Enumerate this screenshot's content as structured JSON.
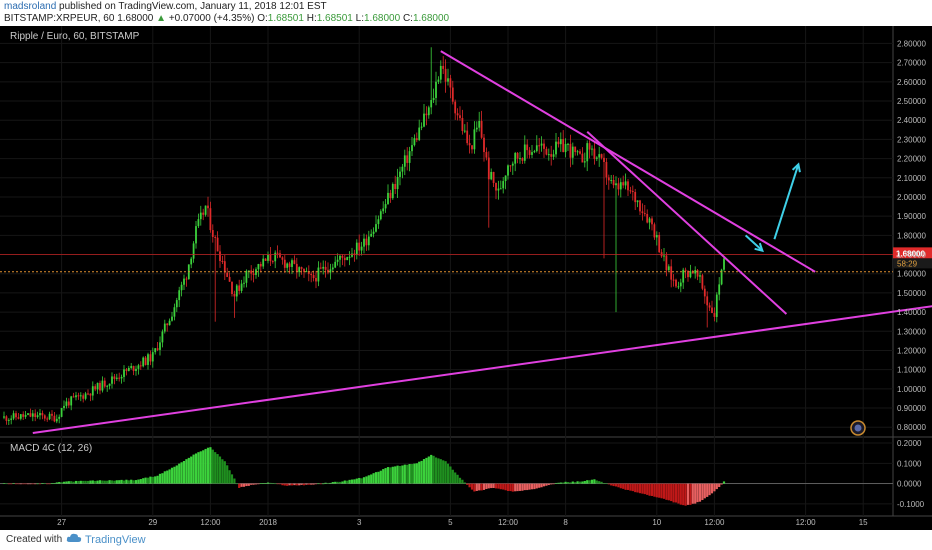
{
  "header": {
    "author": "madsroland",
    "published_text": "published on TradingView.com, January 11, 2018 12:01 EST",
    "symbol": "BITSTAMP:XRPEUR, 60",
    "last": "1.68000",
    "arrow": "▲",
    "change": "+0.07000 (+4.35%)",
    "o_label": "O:",
    "o_value": "1.68501",
    "h_label": "H:",
    "h_value": "1.68501",
    "l_label": "L:",
    "l_value": "1.68000",
    "c_label": "C:",
    "c_value": "1.68000"
  },
  "footer": {
    "created_with": "Created with",
    "brand": "TradingView",
    "logo_icon": "tradingview-cloud-icon"
  },
  "chart_data": {
    "type": "candlestick",
    "legend": "Ripple / Euro, 60, BITSTAMP",
    "y_ticks": [
      "2.80000",
      "2.70000",
      "2.60000",
      "2.50000",
      "2.40000",
      "2.30000",
      "2.20000",
      "2.10000",
      "2.00000",
      "1.90000",
      "1.80000",
      "1.70000",
      "1.60000",
      "1.50000",
      "1.40000",
      "1.30000",
      "1.20000",
      "1.10000",
      "1.00000",
      "0.90000",
      "0.80000"
    ],
    "ylim": [
      0.77,
      2.87
    ],
    "price_label": "1.68000",
    "countdown_label": "58:29",
    "current_price": 1.68,
    "dotted_level": 1.61,
    "red_level": 1.7,
    "x_ticks": [
      "27",
      "29",
      "12:00",
      "2018",
      "3",
      "5",
      "12:00",
      "8",
      "10",
      "12:00",
      "12:00",
      "15"
    ],
    "x_tick_index": [
      24,
      62,
      86,
      110,
      148,
      186,
      210,
      234,
      272,
      296,
      334,
      358
    ],
    "bar_count": 300,
    "anchors": [
      [
        0,
        0.85
      ],
      [
        12,
        0.86
      ],
      [
        22,
        0.85
      ],
      [
        25,
        0.92
      ],
      [
        35,
        0.98
      ],
      [
        45,
        1.05
      ],
      [
        55,
        1.12
      ],
      [
        62,
        1.17
      ],
      [
        70,
        1.4
      ],
      [
        76,
        1.6
      ],
      [
        80,
        1.82
      ],
      [
        84,
        1.95
      ],
      [
        88,
        1.77
      ],
      [
        92,
        1.63
      ],
      [
        96,
        1.49
      ],
      [
        101,
        1.6
      ],
      [
        106,
        1.64
      ],
      [
        112,
        1.69
      ],
      [
        120,
        1.64
      ],
      [
        128,
        1.57
      ],
      [
        134,
        1.63
      ],
      [
        142,
        1.69
      ],
      [
        150,
        1.76
      ],
      [
        158,
        1.94
      ],
      [
        166,
        2.15
      ],
      [
        172,
        2.32
      ],
      [
        178,
        2.48
      ],
      [
        182,
        2.7
      ],
      [
        186,
        2.55
      ],
      [
        190,
        2.4
      ],
      [
        194,
        2.25
      ],
      [
        198,
        2.38
      ],
      [
        202,
        2.12
      ],
      [
        206,
        2.02
      ],
      [
        210,
        2.18
      ],
      [
        216,
        2.23
      ],
      [
        222,
        2.26
      ],
      [
        228,
        2.24
      ],
      [
        234,
        2.27
      ],
      [
        240,
        2.19
      ],
      [
        244,
        2.26
      ],
      [
        250,
        2.15
      ],
      [
        254,
        2.04
      ],
      [
        258,
        2.06
      ],
      [
        264,
        1.98
      ],
      [
        270,
        1.86
      ],
      [
        276,
        1.63
      ],
      [
        280,
        1.54
      ],
      [
        283,
        1.6
      ],
      [
        287,
        1.62
      ],
      [
        290,
        1.56
      ],
      [
        293,
        1.45
      ],
      [
        296,
        1.39
      ],
      [
        299,
        1.64
      ],
      [
        300,
        1.68
      ]
    ],
    "spikes": [
      [
        88,
        1.35
      ],
      [
        96,
        1.37
      ],
      [
        178,
        2.78
      ],
      [
        202,
        1.84
      ],
      [
        250,
        1.68
      ],
      [
        255,
        1.4
      ],
      [
        293,
        1.32
      ]
    ],
    "trendlines": [
      {
        "name": "descending-resistance",
        "t1": 182,
        "p1": 2.76,
        "t2": 338,
        "p2": 1.61,
        "color": "#e040e0"
      },
      {
        "name": "inner-resistance",
        "t1": 243,
        "p1": 2.34,
        "t2": 326,
        "p2": 1.39,
        "color": "#e040e0"
      },
      {
        "name": "ascending-support",
        "t1": 12,
        "p1": 0.77,
        "t2": 392,
        "p2": 1.44,
        "color": "#e040e0"
      }
    ],
    "arrows": [
      {
        "name": "bullish-arrow",
        "t1": 321,
        "p1": 1.78,
        "t2": 331,
        "p2": 2.17,
        "color": "#3fd0e8"
      },
      {
        "name": "pullback-arrow",
        "t1": 309,
        "p1": 1.8,
        "t2": 316,
        "p2": 1.72,
        "color": "#3fd0e8"
      }
    ],
    "colors": {
      "up": "#3cd23c",
      "down": "#e02a2a",
      "background": "#000000"
    },
    "macd": {
      "legend": "MACD 4C (12, 26)",
      "y_ticks": [
        "0.2000",
        "0.1000",
        "0.0000",
        "-0.1000"
      ],
      "ylim": [
        -0.14,
        0.21
      ],
      "anchors": [
        [
          0,
          0
        ],
        [
          20,
          0
        ],
        [
          25,
          0.01
        ],
        [
          40,
          0.015
        ],
        [
          55,
          0.018
        ],
        [
          64,
          0.04
        ],
        [
          72,
          0.09
        ],
        [
          80,
          0.15
        ],
        [
          86,
          0.18
        ],
        [
          92,
          0.11
        ],
        [
          98,
          -0.02
        ],
        [
          104,
          -0.005
        ],
        [
          110,
          0.005
        ],
        [
          118,
          -0.01
        ],
        [
          128,
          -0.005
        ],
        [
          140,
          0.01
        ],
        [
          150,
          0.03
        ],
        [
          160,
          0.08
        ],
        [
          172,
          0.1
        ],
        [
          178,
          0.14
        ],
        [
          184,
          0.11
        ],
        [
          190,
          0.03
        ],
        [
          196,
          -0.04
        ],
        [
          204,
          -0.02
        ],
        [
          212,
          -0.04
        ],
        [
          220,
          -0.03
        ],
        [
          230,
          0.005
        ],
        [
          240,
          0.01
        ],
        [
          246,
          0.02
        ],
        [
          250,
          0.005
        ],
        [
          256,
          -0.02
        ],
        [
          266,
          -0.05
        ],
        [
          276,
          -0.08
        ],
        [
          284,
          -0.11
        ],
        [
          290,
          -0.09
        ],
        [
          296,
          -0.04
        ],
        [
          300,
          0.01
        ]
      ]
    }
  }
}
